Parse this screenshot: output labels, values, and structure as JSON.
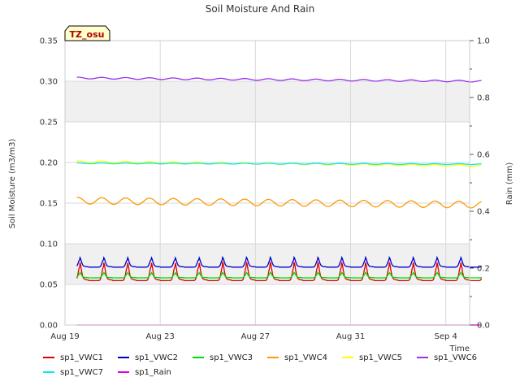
{
  "chart_data": {
    "type": "line",
    "title": "Soil Moisture And Rain",
    "station_badge": "TZ_osu",
    "xlabel": "Time",
    "ylabel_left": "Soil Moisture (m3/m3)",
    "ylabel_right": "Rain (mm)",
    "x_ticks": [
      {
        "date": "2023-08-19",
        "label": "Aug 19"
      },
      {
        "date": "2023-08-23",
        "label": "Aug 23"
      },
      {
        "date": "2023-08-27",
        "label": "Aug 27"
      },
      {
        "date": "2023-08-31",
        "label": "Aug 31"
      },
      {
        "date": "2023-09-04",
        "label": "Sep 4"
      }
    ],
    "x_range": [
      "2023-08-19",
      "2023-09-05"
    ],
    "x_data_range": [
      "2023-08-19T12:00",
      "2023-09-05T12:00"
    ],
    "ylim_left": [
      0.0,
      0.35
    ],
    "yticks_left": [
      "0.00",
      "0.05",
      "0.10",
      "0.15",
      "0.20",
      "0.25",
      "0.30",
      "0.35"
    ],
    "ylim_right": [
      0.0,
      1.0
    ],
    "yticks_right": [
      "0.0",
      "0.2",
      "0.4",
      "0.6",
      "0.8",
      "1.0"
    ],
    "grid": true,
    "shaded_bands_left": [
      [
        0.05,
        0.1
      ],
      [
        0.25,
        0.3
      ]
    ],
    "series": [
      {
        "name": "sp1_VWC1",
        "color": "#dd0000",
        "axis": "left",
        "base": 0.058,
        "amp": 0.017,
        "pattern": "daily-peak"
      },
      {
        "name": "sp1_VWC2",
        "color": "#0000cc",
        "axis": "left",
        "base": 0.073,
        "amp": 0.009,
        "pattern": "daily-peak"
      },
      {
        "name": "sp1_VWC3",
        "color": "#00dd00",
        "axis": "left",
        "base": 0.059,
        "amp": 0.005,
        "pattern": "daily-peak"
      },
      {
        "name": "sp1_VWC4",
        "color": "#ff9900",
        "axis": "left",
        "start": 0.153,
        "end": 0.148,
        "amp": 0.004,
        "pattern": "daily-wave"
      },
      {
        "name": "sp1_VWC5",
        "color": "#ffff00",
        "axis": "left",
        "start": 0.201,
        "end": 0.196,
        "amp": 0.001,
        "pattern": "daily-wave"
      },
      {
        "name": "sp1_VWC6",
        "color": "#9933ee",
        "axis": "left",
        "start": 0.304,
        "end": 0.3,
        "amp": 0.001,
        "pattern": "daily-wave"
      },
      {
        "name": "sp1_VWC7",
        "color": "#00eeee",
        "axis": "left",
        "start": 0.199,
        "end": 0.198,
        "amp": 0.0005,
        "pattern": "daily-wave"
      },
      {
        "name": "sp1_Rain",
        "color": "#dd00dd",
        "axis": "right",
        "start": 0.0,
        "end": 0.0,
        "amp": 0.0,
        "pattern": "flat"
      }
    ]
  },
  "colors": {
    "band": "#f0f0f0",
    "grid": "#d8d8d8",
    "badge_fill": "#ffffcc",
    "badge_text": "#aa0000"
  }
}
